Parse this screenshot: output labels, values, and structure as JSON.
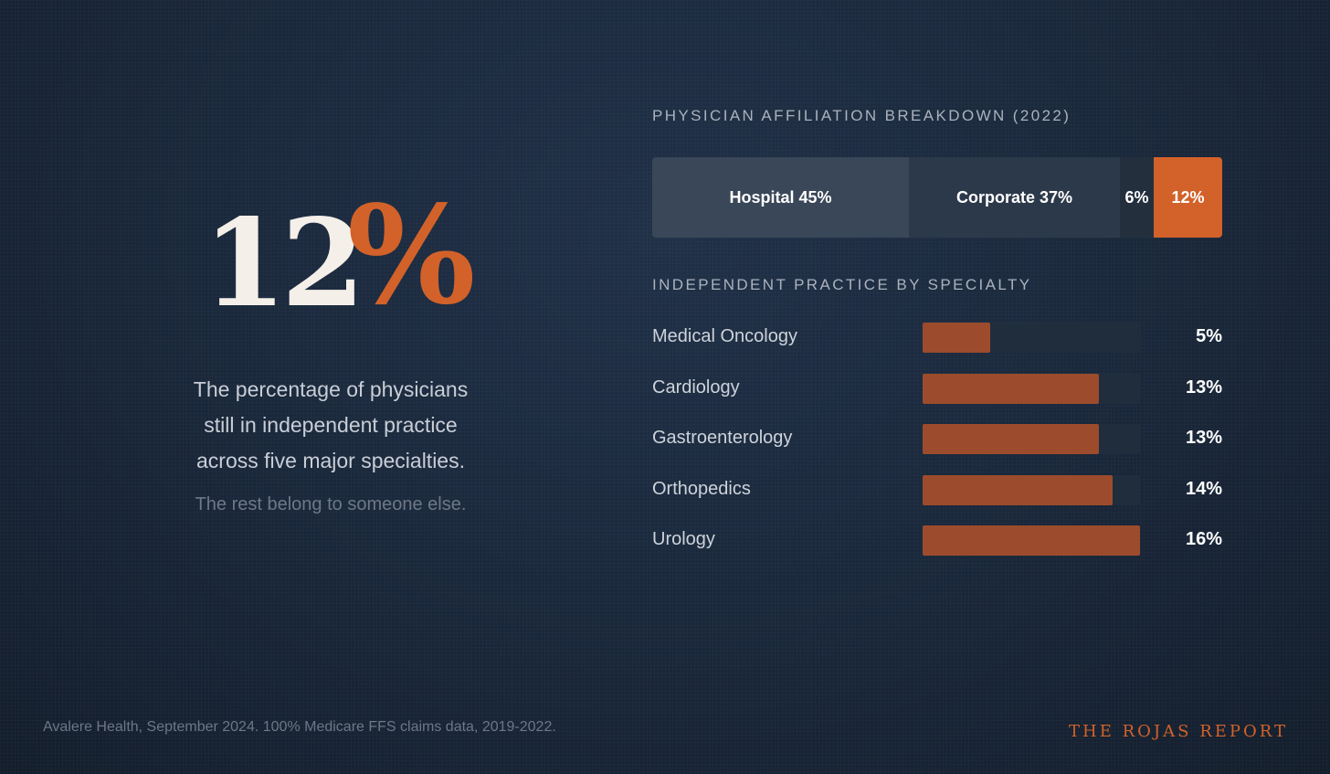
{
  "hero": {
    "number": "12",
    "percent_sign": "%",
    "description_lines": [
      "The percentage of physicians",
      "still in independent practice",
      "across five major specialties."
    ],
    "subtext": "The rest belong to someone else."
  },
  "colors": {
    "accent": "#d2622a",
    "bar_fill": "#9c4c2c",
    "background": "#1a283b"
  },
  "chart_data": [
    {
      "type": "bar",
      "orientation": "stacked-horizontal",
      "title": "PHYSICIAN AFFILIATION BREAKDOWN (2022)",
      "segments": [
        {
          "label": "Hospital 45%",
          "value": 45,
          "color": "#3a4758"
        },
        {
          "label": "Corporate 37%",
          "value": 37,
          "color": "#2c394a"
        },
        {
          "label": "6%",
          "value": 6,
          "color": "#242f3e"
        },
        {
          "label": "12%",
          "value": 12,
          "color": "#d2622a"
        }
      ]
    },
    {
      "type": "bar",
      "orientation": "horizontal",
      "title": "INDEPENDENT PRACTICE BY SPECIALTY",
      "categories": [
        "Medical Oncology",
        "Cardiology",
        "Gastroenterology",
        "Orthopedics",
        "Urology"
      ],
      "values": [
        5,
        13,
        13,
        14,
        16
      ],
      "value_labels": [
        "5%",
        "13%",
        "13%",
        "14%",
        "16%"
      ],
      "xlim": [
        0,
        16
      ],
      "grid": false
    }
  ],
  "footer": {
    "source": "Avalere Health, September 2024. 100% Medicare FFS claims data, 2019-2022.",
    "brand": "THE ROJAS REPORT"
  }
}
